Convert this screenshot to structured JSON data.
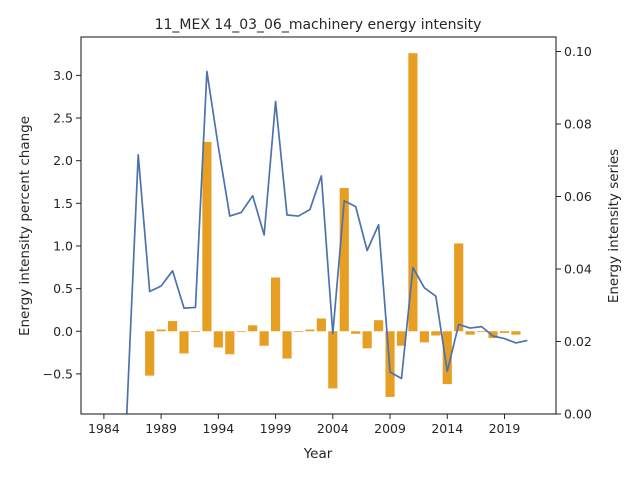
{
  "chart_data": {
    "type": "bar+line",
    "title": "11_MEX 14_03_06_machinery energy intensity",
    "xlabel": "Year",
    "ylabel_left": "Energy intensity percent change",
    "ylabel_right": "Energy intensity series",
    "xlim": [
      1982,
      2023.5
    ],
    "ylim_left": [
      -0.97,
      3.45
    ],
    "ylim_right": [
      0.0,
      0.104
    ],
    "x_ticks": [
      1984,
      1989,
      1994,
      1999,
      2004,
      2009,
      2014,
      2019
    ],
    "y_left_ticks": [
      -0.5,
      0.0,
      0.5,
      1.0,
      1.5,
      2.0,
      2.5,
      3.0
    ],
    "y_left_tick_labels": [
      "−0.5",
      "0.0",
      "0.5",
      "1.0",
      "1.5",
      "2.0",
      "2.5",
      "3.0"
    ],
    "y_right_ticks": [
      0.0,
      0.02,
      0.04,
      0.06,
      0.08,
      0.1
    ],
    "y_right_tick_labels": [
      "0.00",
      "0.02",
      "0.04",
      "0.06",
      "0.08",
      "0.10"
    ],
    "bar_color": "#e69f22",
    "line_color": "#4c72b0",
    "bars": {
      "name": "Energy intensity percent change",
      "x": [
        1988,
        1989,
        1990,
        1991,
        1992,
        1993,
        1994,
        1995,
        1996,
        1997,
        1998,
        1999,
        2000,
        2001,
        2002,
        2003,
        2004,
        2005,
        2006,
        2007,
        2008,
        2009,
        2010,
        2011,
        2012,
        2013,
        2014,
        2015,
        2016,
        2017,
        2018,
        2019,
        2020
      ],
      "values": [
        -0.52,
        0.02,
        0.12,
        -0.26,
        0.0,
        2.22,
        -0.19,
        -0.27,
        0.0,
        0.07,
        -0.17,
        0.63,
        -0.32,
        0.0,
        0.02,
        0.15,
        -0.67,
        1.68,
        -0.03,
        -0.2,
        0.13,
        -0.77,
        -0.17,
        3.26,
        -0.13,
        -0.05,
        -0.62,
        1.03,
        -0.04,
        0.0,
        -0.08,
        -0.02,
        -0.04
      ]
    },
    "line": {
      "name": "Energy intensity series",
      "x": [
        1986,
        1987,
        1988,
        1989,
        1990,
        1991,
        1992,
        1993,
        1994,
        1995,
        1996,
        1997,
        1998,
        1999,
        2000,
        2001,
        2002,
        2003,
        2004,
        2005,
        2006,
        2007,
        2008,
        2009,
        2010,
        2011,
        2012,
        2013,
        2014,
        2015,
        2016,
        2017,
        2018,
        2019,
        2020,
        2021
      ],
      "values": [
        0.0,
        0.0715,
        0.0338,
        0.0353,
        0.0395,
        0.0292,
        0.0294,
        0.0945,
        0.0737,
        0.0546,
        0.0556,
        0.0602,
        0.0494,
        0.0862,
        0.0549,
        0.0546,
        0.0564,
        0.0657,
        0.0222,
        0.0588,
        0.0572,
        0.0451,
        0.0522,
        0.0116,
        0.0098,
        0.0404,
        0.0348,
        0.0325,
        0.0118,
        0.0247,
        0.0237,
        0.0241,
        0.0215,
        0.0208,
        0.0196,
        0.0203
      ]
    },
    "grid": false,
    "legend": "none"
  }
}
